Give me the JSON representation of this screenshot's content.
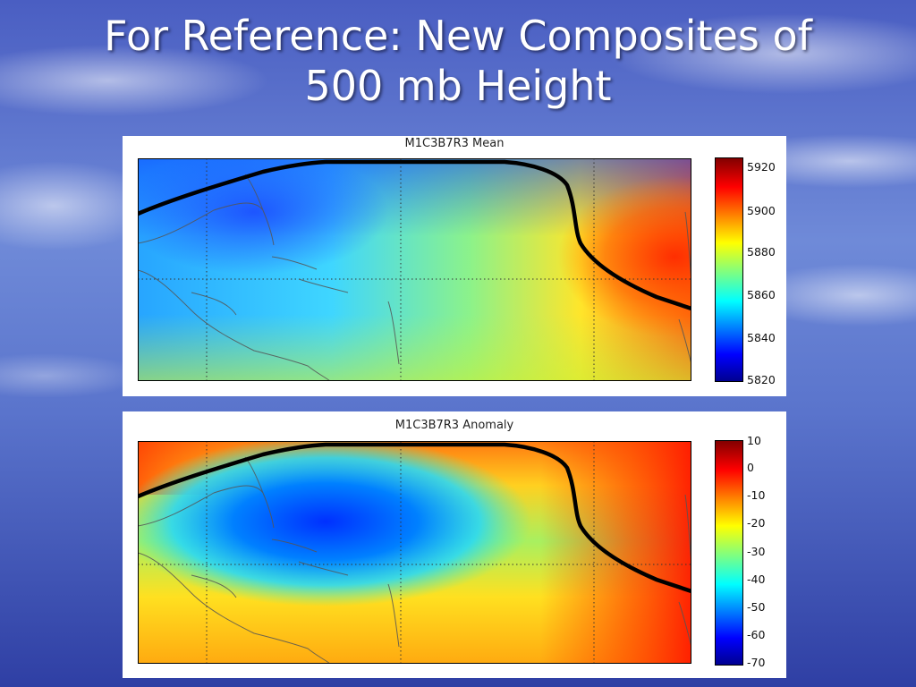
{
  "slide": {
    "title_line1": "For Reference: New Composites of",
    "title_line2": "500 mb Height"
  },
  "panels": [
    {
      "title": "M1C3B7R3 Mean",
      "colorbar_ticks": [
        "5920",
        "5900",
        "5880",
        "5860",
        "5840",
        "5820"
      ]
    },
    {
      "title": "M1C3B7R3 Anomaly",
      "colorbar_ticks": [
        "10",
        "0",
        "-10",
        "-20",
        "-30",
        "-40",
        "-50",
        "-60",
        "-70"
      ]
    }
  ],
  "colors": {
    "jet_dark_blue": "#00008f",
    "jet_blue": "#0050ff",
    "jet_cyan": "#00e0ff",
    "jet_yellow": "#ffe000",
    "jet_red": "#ff2000",
    "jet_dark_red": "#800000",
    "contour_line": "#000000"
  }
}
